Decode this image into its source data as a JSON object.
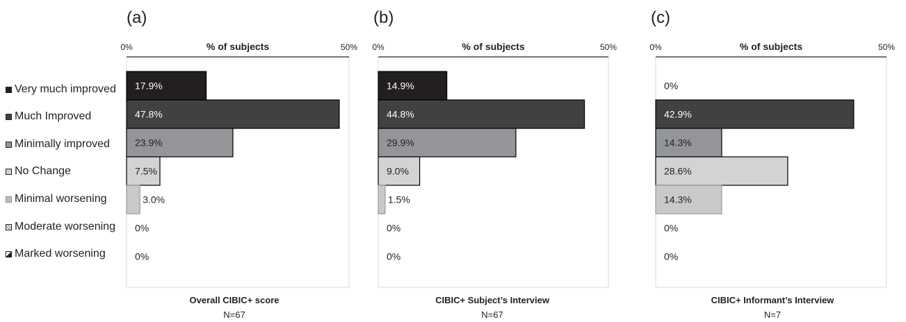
{
  "legend": {
    "items": [
      {
        "label": "Very much improved",
        "color": "#231f20",
        "pattern": "solid"
      },
      {
        "label": "Much Improved",
        "color": "#414042",
        "pattern": "solid"
      },
      {
        "label": "Minimally improved",
        "color": "#939598",
        "pattern": "solid"
      },
      {
        "label": "No Change",
        "color": "#d1d3d4",
        "pattern": "solid"
      },
      {
        "label": "Minimal worsening",
        "color": "#bcbec0",
        "pattern": "solid"
      },
      {
        "label": "Moderate worsening",
        "color": "#6d6e71",
        "pattern": "crosshatch"
      },
      {
        "label": "Marked worsening",
        "color": "#231f20",
        "pattern": "half"
      }
    ]
  },
  "chart_data": [
    {
      "type": "bar",
      "panel_label": "(a)",
      "axis_title": "% of subjects",
      "tick_labels": [
        "0%",
        "50%"
      ],
      "xlim": [
        0,
        50
      ],
      "categories": [
        "Very much improved",
        "Much Improved",
        "Minimally improved",
        "No Change",
        "Minimal worsening",
        "Moderate worsening",
        "Marked worsening"
      ],
      "values": [
        17.9,
        47.8,
        23.9,
        7.5,
        3.0,
        0,
        0
      ],
      "data_labels": [
        "17.9%",
        "47.8%",
        "23.9%",
        "7.5%",
        "3.0%",
        "0%",
        "0%"
      ],
      "title": "Overall CIBIC+ score",
      "n_label": "N=67"
    },
    {
      "type": "bar",
      "panel_label": "(b)",
      "axis_title": "% of subjects",
      "tick_labels": [
        "0%",
        "50%"
      ],
      "xlim": [
        0,
        50
      ],
      "categories": [
        "Very much improved",
        "Much Improved",
        "Minimally improved",
        "No Change",
        "Minimal worsening",
        "Moderate worsening",
        "Marked worsening"
      ],
      "values": [
        14.9,
        44.8,
        29.9,
        9.0,
        1.5,
        0,
        0
      ],
      "data_labels": [
        "14.9%",
        "44.8%",
        "29.9%",
        "9.0%",
        "1.5%",
        "0%",
        "0%"
      ],
      "title": "CIBIC+ Subject’s Interview",
      "n_label": "N=67"
    },
    {
      "type": "bar",
      "panel_label": "(c)",
      "axis_title": "% of subjects",
      "tick_labels": [
        "0%",
        "50%"
      ],
      "xlim": [
        0,
        50
      ],
      "categories": [
        "Very much improved",
        "Much Improved",
        "Minimally improved",
        "No Change",
        "Minimal worsening",
        "Moderate worsening",
        "Marked worsening"
      ],
      "values": [
        0,
        42.9,
        14.3,
        28.6,
        14.3,
        0,
        0
      ],
      "data_labels": [
        "0%",
        "42.9%",
        "14.3%",
        "28.6%",
        "14.3%",
        "0%",
        "0%"
      ],
      "title": "CIBIC+ Informant’s Interview",
      "n_label": "N=7"
    }
  ]
}
